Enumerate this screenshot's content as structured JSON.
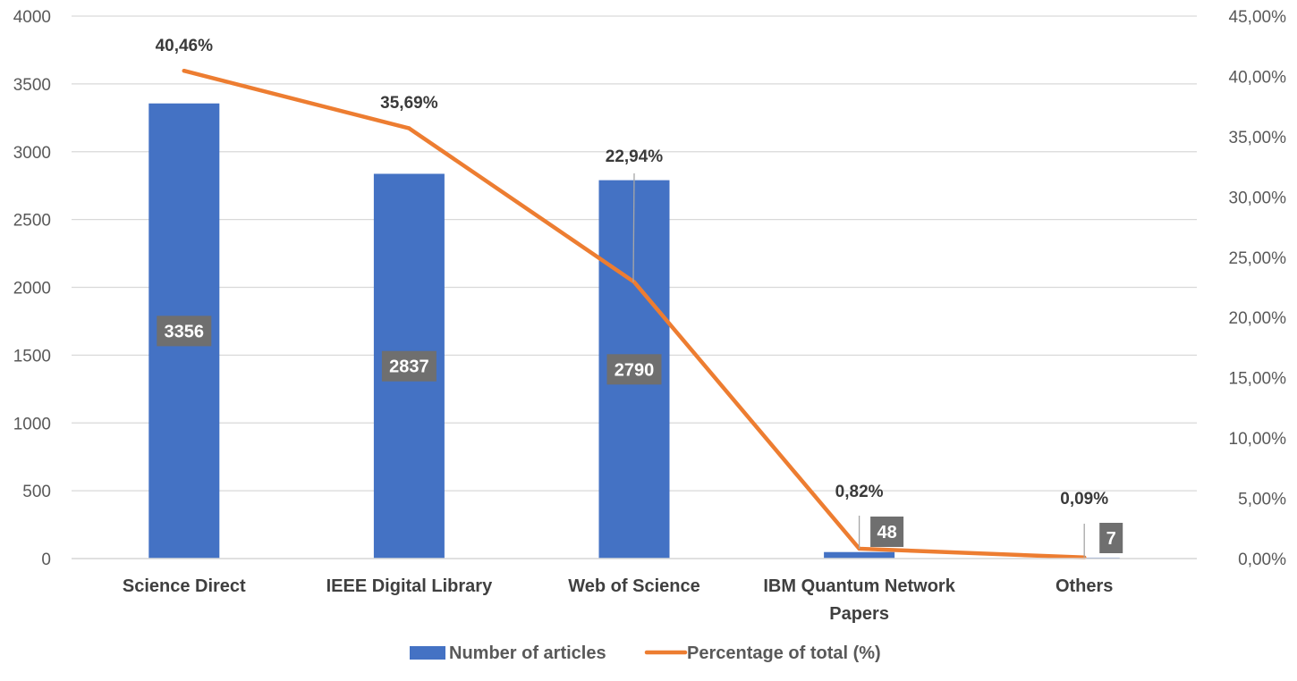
{
  "chart_data": {
    "type": "bar",
    "categories": [
      "Science Direct",
      "IEEE Digital Library",
      "Web of Science",
      "IBM Quantum Network Papers",
      "Others"
    ],
    "category_lines": [
      [
        "Science Direct"
      ],
      [
        "IEEE Digital Library"
      ],
      [
        "Web of Science"
      ],
      [
        "IBM Quantum Network",
        "Papers"
      ],
      [
        "Others"
      ]
    ],
    "series": [
      {
        "name": "Number of articles",
        "type": "bar",
        "axis": "left",
        "color": "#4472c4",
        "values": [
          3356,
          2837,
          2790,
          48,
          7
        ],
        "labels": [
          "3356",
          "2837",
          "2790",
          "48",
          "7"
        ]
      },
      {
        "name": "Percentage of total (%)",
        "type": "line",
        "axis": "right",
        "color": "#ed7d31",
        "values": [
          40.46,
          35.69,
          22.94,
          0.82,
          0.09
        ],
        "labels": [
          "40,46%",
          "35,69%",
          "22,94%",
          "0,82%",
          "0,09%"
        ]
      }
    ],
    "y_left": {
      "min": 0,
      "max": 4000,
      "ticks": [
        0,
        500,
        1000,
        1500,
        2000,
        2500,
        3000,
        3500,
        4000
      ],
      "tick_labels": [
        "0",
        "500",
        "1000",
        "1500",
        "2000",
        "2500",
        "3000",
        "3500",
        "4000"
      ]
    },
    "y_right": {
      "min": 0,
      "max": 45,
      "ticks": [
        0,
        5,
        10,
        15,
        20,
        25,
        30,
        35,
        40,
        45
      ],
      "tick_labels": [
        "0,00%",
        "5,00%",
        "10,00%",
        "15,00%",
        "20,00%",
        "25,00%",
        "30,00%",
        "35,00%",
        "40,00%",
        "45,00%"
      ]
    },
    "grid": true,
    "legend_position": "bottom",
    "colors": {
      "gridline": "#d9d9d9",
      "bar_label_box": "#6f6f6f",
      "leader_line": "#a6a6a6"
    }
  }
}
